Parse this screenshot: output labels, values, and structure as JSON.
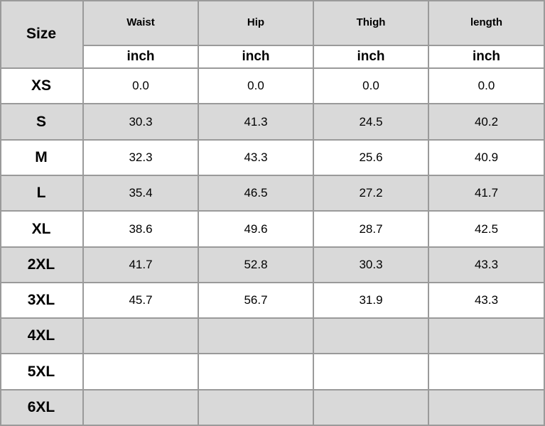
{
  "table": {
    "header": {
      "size": "Size",
      "columns": [
        "Waist",
        "Hip",
        "Thigh",
        "length"
      ],
      "units": [
        "inch",
        "inch",
        "inch",
        "inch"
      ]
    },
    "rows": [
      {
        "size": "XS",
        "values": [
          "0.0",
          "0.0",
          "0.0",
          "0.0"
        ]
      },
      {
        "size": "S",
        "values": [
          "30.3",
          "41.3",
          "24.5",
          "40.2"
        ]
      },
      {
        "size": "M",
        "values": [
          "32.3",
          "43.3",
          "25.6",
          "40.9"
        ]
      },
      {
        "size": "L",
        "values": [
          "35.4",
          "46.5",
          "27.2",
          "41.7"
        ]
      },
      {
        "size": "XL",
        "values": [
          "38.6",
          "49.6",
          "28.7",
          "42.5"
        ]
      },
      {
        "size": "2XL",
        "values": [
          "41.7",
          "52.8",
          "30.3",
          "43.3"
        ]
      },
      {
        "size": "3XL",
        "values": [
          "45.7",
          "56.7",
          "31.9",
          "43.3"
        ]
      },
      {
        "size": "4XL",
        "values": []
      },
      {
        "size": "5XL",
        "values": []
      },
      {
        "size": "6XL",
        "values": []
      }
    ]
  }
}
